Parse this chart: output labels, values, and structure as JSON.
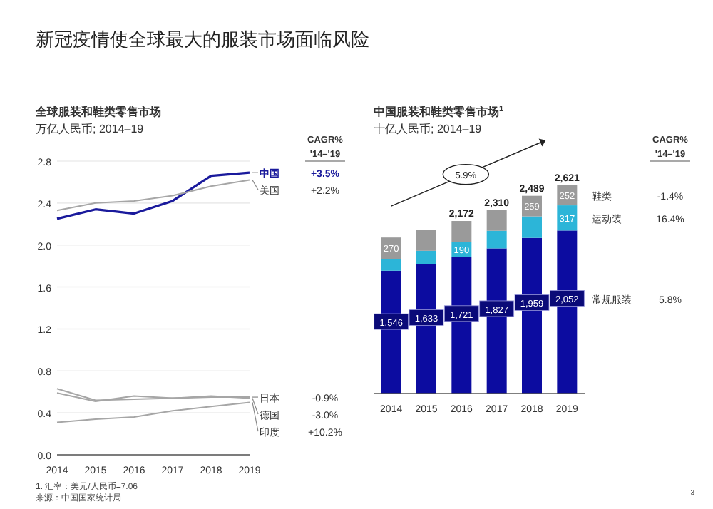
{
  "chart_data": [
    {
      "type": "line",
      "title": "新冠疫情使全球最大的服装市场面临风险",
      "subtitle": "全球服装和鞋类零售市场",
      "ylabel": "万亿人民币; 2014–19",
      "categories": [
        "2014",
        "2015",
        "2016",
        "2017",
        "2018",
        "2019"
      ],
      "series": [
        {
          "name": "中国",
          "color": "#1a1a9c",
          "values": [
            2.25,
            2.34,
            2.3,
            2.42,
            2.66,
            2.69
          ]
        },
        {
          "name": "美国",
          "color": "#a6a6a6",
          "values": [
            2.33,
            2.4,
            2.42,
            2.47,
            2.56,
            2.62
          ]
        },
        {
          "name": "日本",
          "color": "#a6a6a6",
          "values": [
            0.63,
            0.52,
            0.53,
            0.54,
            0.55,
            0.55
          ]
        },
        {
          "name": "德国",
          "color": "#a6a6a6",
          "values": [
            0.59,
            0.51,
            0.56,
            0.54,
            0.56,
            0.54
          ]
        },
        {
          "name": "印度",
          "color": "#a6a6a6",
          "values": [
            0.31,
            0.34,
            0.36,
            0.42,
            0.46,
            0.5
          ]
        }
      ],
      "ylim": [
        0,
        2.8
      ],
      "yticks": [
        {
          "value": 0,
          "label": "0.0"
        },
        0.4,
        0.8,
        1.2,
        1.6,
        {
          "value": 2,
          "label": "2.0"
        },
        2.4,
        2.8
      ],
      "grid": "y",
      "legend": false,
      "annotations": [
        "CAGR%",
        "'14–'19",
        "+3.5%",
        "+2.2%",
        "-0.9%",
        "-3.0%",
        "+10.2%",
        "1. 汇率：美元/人民币=7.06",
        "来源：中国国家统计局"
      ]
    },
    {
      "type": "bar",
      "stacked": true,
      "title": "中国服装和鞋类零售市场$^{1}$",
      "ylabel": "十亿人民币; 2014–19",
      "categories": [
        "2014",
        "2015",
        "2016",
        "2017",
        "2018",
        "2019"
      ],
      "series": [
        {
          "name": "常规服装",
          "color": "#0c0ca0",
          "values": [
            1546,
            1633,
            1721,
            1827,
            1959,
            2052
          ],
          "value_labels": [
            "1,546",
            "1,633",
            "1,721",
            "1,827",
            "1,959",
            "2,052"
          ]
        },
        {
          "name": "运动装",
          "color": "#2cb5d8",
          "values": [
            148,
            164,
            190,
            222,
            271,
            317
          ],
          "value_labels": [
            null,
            null,
            "190",
            null,
            null,
            "317"
          ]
        },
        {
          "name": "鞋类",
          "color": "#9a9a9a",
          "values": [
            270,
            265,
            261,
            261,
            259,
            252
          ],
          "value_labels": [
            "270",
            null,
            null,
            null,
            "259",
            "252"
          ]
        }
      ],
      "totals": [
        null,
        null,
        "2,172",
        "2,310",
        "2,489",
        "2,621"
      ],
      "legend": false,
      "annotations": [
        "CAGR%",
        "'14–'19",
        "5.8%",
        "16.4%",
        "-1.4%",
        {
          "text": "5.9%"
        },
        "3"
      ]
    }
  ]
}
